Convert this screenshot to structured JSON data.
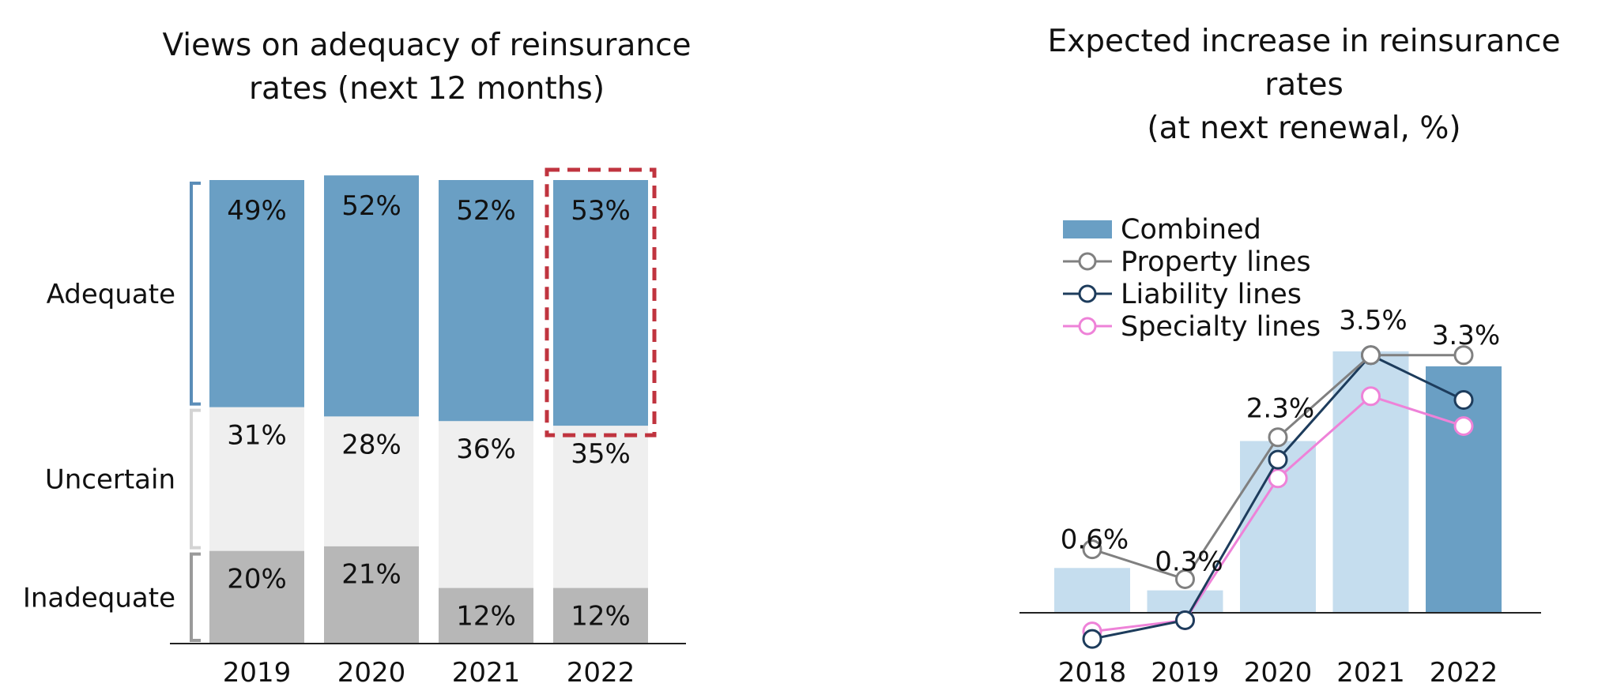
{
  "chart_data": [
    {
      "type": "bar",
      "stacked": true,
      "title": "Views on adequacy of reinsurance rates (next 12 months)",
      "title_lines": [
        "Views on adequacy of reinsurance",
        "rates (next 12 months)"
      ],
      "categories": [
        "2019",
        "2020",
        "2021",
        "2022"
      ],
      "series": [
        {
          "name": "Inadequate",
          "values": [
            20,
            21,
            12,
            12
          ],
          "labels": [
            "20%",
            "21%",
            "12%",
            "12%"
          ],
          "color": "#b7b7b7"
        },
        {
          "name": "Uncertain",
          "values": [
            31,
            28,
            36,
            35
          ],
          "labels": [
            "31%",
            "28%",
            "36%",
            "35%"
          ],
          "color": "#efefef"
        },
        {
          "name": "Adequate",
          "values": [
            49,
            52,
            52,
            53
          ],
          "labels": [
            "49%",
            "52%",
            "52%",
            "53%"
          ],
          "color": "#6a9fc4"
        }
      ],
      "highlight_category": "2022",
      "highlight_color": "#c0343f",
      "bracket_colors": {
        "Adequate": "#5b8db8",
        "Uncertain": "#d4d4d4",
        "Inadequate": "#9a9a9a"
      }
    },
    {
      "type": "bar",
      "title": "Expected increase in reinsurance rates (at next renewal, %)",
      "title_lines": [
        "Expected increase in reinsurance rates",
        "(at next renewal, %)"
      ],
      "categories": [
        "2018",
        "2019",
        "2020",
        "2021",
        "2022"
      ],
      "ylim": [
        -0.2,
        3.7
      ],
      "legend_position": "top-left",
      "series": [
        {
          "name": "Combined",
          "kind": "bar",
          "values": [
            0.6,
            0.3,
            2.3,
            3.5,
            3.3
          ],
          "labels": [
            "0.6%",
            "0.3%",
            "2.3%",
            "3.5%",
            "3.3%"
          ],
          "colors": [
            "#c5ddee",
            "#c5ddee",
            "#c5ddee",
            "#c5ddee",
            "#6a9fc4"
          ]
        },
        {
          "name": "Property lines",
          "kind": "line",
          "values": [
            0.85,
            0.45,
            2.35,
            3.45,
            3.45
          ],
          "color": "#808080"
        },
        {
          "name": "Liability lines",
          "kind": "line",
          "values": [
            -0.35,
            -0.1,
            2.05,
            3.45,
            2.85
          ],
          "color": "#1d3c5c"
        },
        {
          "name": "Specialty lines",
          "kind": "line",
          "values": [
            -0.25,
            -0.1,
            1.8,
            2.9,
            2.5
          ],
          "color": "#ee82d8"
        }
      ]
    }
  ]
}
